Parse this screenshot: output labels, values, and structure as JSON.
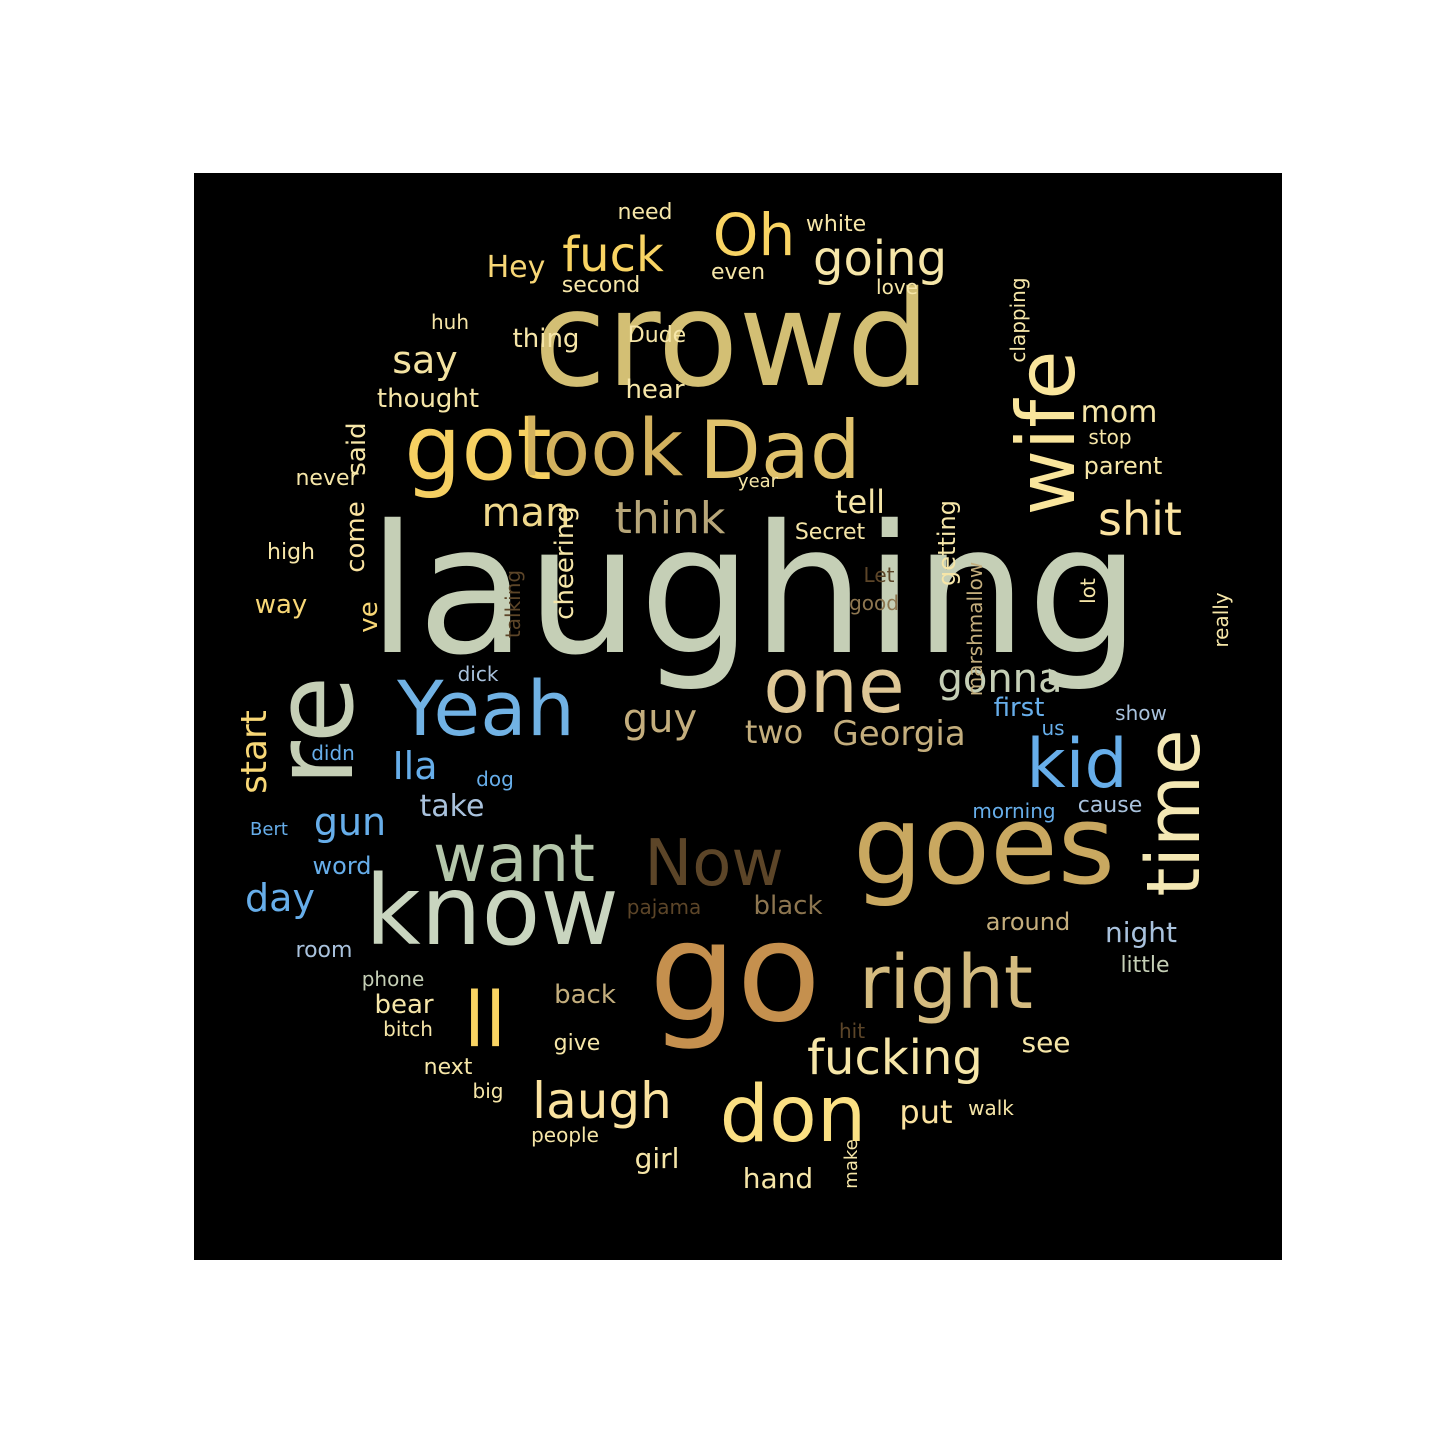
{
  "words": [
    {
      "text": "laughing",
      "color": "#c5cfb6"
    },
    {
      "text": "re",
      "color": "#c5cfb6"
    },
    {
      "text": "crowd",
      "color": "#d3bf74"
    },
    {
      "text": "go",
      "color": "#c5904e"
    },
    {
      "text": "goes",
      "color": "#c9a860"
    },
    {
      "text": "know",
      "color": "#c9d5bf"
    },
    {
      "text": "got",
      "color": "#f6d062"
    },
    {
      "text": "look",
      "color": "#d2b15e"
    },
    {
      "text": "Dad",
      "color": "#e0c26c"
    },
    {
      "text": "wife",
      "color": "#f9e59c"
    },
    {
      "text": "one",
      "color": "#dec796"
    },
    {
      "text": "Yeah",
      "color": "#71b2e4"
    },
    {
      "text": "right",
      "color": "#d4bb7f"
    },
    {
      "text": "don",
      "color": "#fbe083"
    },
    {
      "text": "time",
      "color": "#f4e8b4"
    },
    {
      "text": "kid",
      "color": "#67aeea"
    },
    {
      "text": "want",
      "color": "#b4c6aa"
    },
    {
      "text": "Now",
      "color": "#5c4528"
    },
    {
      "text": "ll",
      "color": "#f9d463"
    },
    {
      "text": "Oh",
      "color": "#f9d463"
    },
    {
      "text": "fuck",
      "color": "#f9d463"
    },
    {
      "text": "going",
      "color": "#f6e6a8"
    },
    {
      "text": "fucking",
      "color": "#f6e6a8"
    },
    {
      "text": "laugh",
      "color": "#fbe3a0"
    },
    {
      "text": "shit",
      "color": "#fbe3a0"
    },
    {
      "text": "think",
      "color": "#b7a679"
    },
    {
      "text": "gonna",
      "color": "#c5cfb6"
    },
    {
      "text": "guy",
      "color": "#c4ae7d"
    },
    {
      "text": "man",
      "color": "#f0d98c"
    },
    {
      "text": "say",
      "color": "#f4e3a2"
    },
    {
      "text": "start",
      "color": "#f8d776"
    },
    {
      "text": "gun",
      "color": "#67aeea"
    },
    {
      "text": "Ila",
      "color": "#67aeea"
    },
    {
      "text": "day",
      "color": "#67aeea"
    },
    {
      "text": "Georgia",
      "color": "#c4ae7d"
    },
    {
      "text": "two",
      "color": "#c4ae7d"
    },
    {
      "text": "Hey",
      "color": "#f8d776"
    },
    {
      "text": "tell",
      "color": "#f6e6a8"
    },
    {
      "text": "mom",
      "color": "#f6e6a8"
    },
    {
      "text": "take",
      "color": "#a9c2dd"
    },
    {
      "text": "put",
      "color": "#fbe3a0"
    },
    {
      "text": "girl",
      "color": "#f6e6a8"
    },
    {
      "text": "hand",
      "color": "#f6e6a8"
    },
    {
      "text": "come",
      "color": "#fbe3a0"
    },
    {
      "text": "ve",
      "color": "#f8d776"
    },
    {
      "text": "said",
      "color": "#f6e6a8"
    },
    {
      "text": "thought",
      "color": "#f6e6a8"
    },
    {
      "text": "hear",
      "color": "#f6e6a8"
    },
    {
      "text": "thing",
      "color": "#f6e6a8"
    },
    {
      "text": "cheering",
      "color": "#f6e6a8"
    },
    {
      "text": "getting",
      "color": "#f6e6a8"
    },
    {
      "text": "first",
      "color": "#67aeea"
    },
    {
      "text": "night",
      "color": "#a9c2dd"
    },
    {
      "text": "back",
      "color": "#c4ae7d"
    },
    {
      "text": "bear",
      "color": "#f6e6a8"
    },
    {
      "text": "see",
      "color": "#f6e6a8"
    },
    {
      "text": "way",
      "color": "#f8d776"
    },
    {
      "text": "parent",
      "color": "#f6e6a8"
    },
    {
      "text": "word",
      "color": "#67aeea"
    },
    {
      "text": "need",
      "color": "#f6e6a8"
    },
    {
      "text": "even",
      "color": "#f6e6a8"
    },
    {
      "text": "white",
      "color": "#f6e6a8"
    },
    {
      "text": "second",
      "color": "#f6e6a8"
    },
    {
      "text": "Dude",
      "color": "#f6e6a8"
    },
    {
      "text": "clapping",
      "color": "#f6e6a8"
    },
    {
      "text": "love",
      "color": "#f6e6a8"
    },
    {
      "text": "huh",
      "color": "#f6e6a8"
    },
    {
      "text": "stop",
      "color": "#f6e6a8"
    },
    {
      "text": "never",
      "color": "#f6e6a8"
    },
    {
      "text": "year",
      "color": "#f6e6a8"
    },
    {
      "text": "Secret",
      "color": "#f6e6a8"
    },
    {
      "text": "high",
      "color": "#f6e6a8"
    },
    {
      "text": "talking",
      "color": "#5c4528"
    },
    {
      "text": "Let",
      "color": "#5c4528"
    },
    {
      "text": "good",
      "color": "#8d7650"
    },
    {
      "text": "marshmallow",
      "color": "#c4ae7d"
    },
    {
      "text": "lot",
      "color": "#f6e6a8"
    },
    {
      "text": "really",
      "color": "#f6e6a8"
    },
    {
      "text": "dick",
      "color": "#a9c2dd"
    },
    {
      "text": "us",
      "color": "#67aeea"
    },
    {
      "text": "show",
      "color": "#a9c2dd"
    },
    {
      "text": "didn",
      "color": "#67aeea"
    },
    {
      "text": "dog",
      "color": "#67aeea"
    },
    {
      "text": "morning",
      "color": "#67aeea"
    },
    {
      "text": "cause",
      "color": "#a9c2dd"
    },
    {
      "text": "Bert",
      "color": "#67aeea"
    },
    {
      "text": "pajama",
      "color": "#5c4528"
    },
    {
      "text": "black",
      "color": "#8d7650"
    },
    {
      "text": "around",
      "color": "#c4ae7d"
    },
    {
      "text": "room",
      "color": "#a9c2dd"
    },
    {
      "text": "phone",
      "color": "#c5cfb6"
    },
    {
      "text": "little",
      "color": "#c5cfb6"
    },
    {
      "text": "bitch",
      "color": "#f6e6a8"
    },
    {
      "text": "hit",
      "color": "#5c4528"
    },
    {
      "text": "give",
      "color": "#f6e6a8"
    },
    {
      "text": "next",
      "color": "#f6e6a8"
    },
    {
      "text": "big",
      "color": "#f6e6a8"
    },
    {
      "text": "walk",
      "color": "#f6e6a8"
    },
    {
      "text": "people",
      "color": "#f6e6a8"
    },
    {
      "text": "make",
      "color": "#f6e6a8"
    }
  ]
}
